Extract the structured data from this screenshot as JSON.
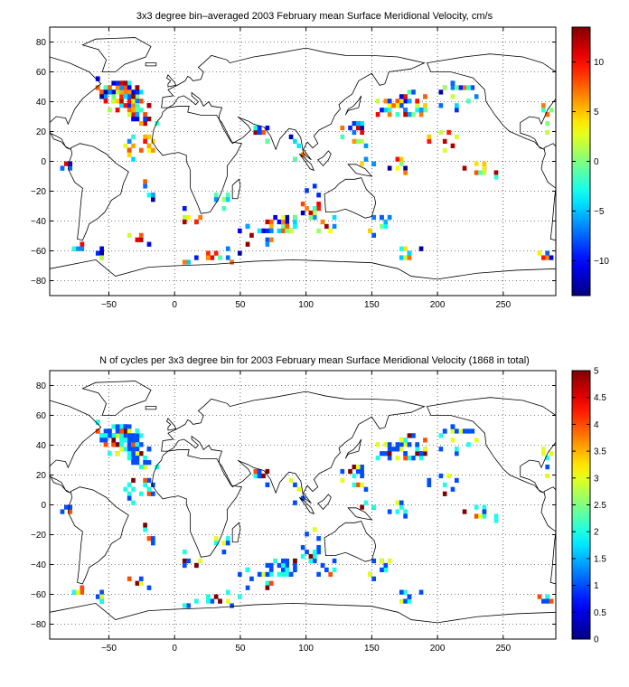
{
  "panels": [
    {
      "title": "3x3 degree bin–averaged 2003 February mean Surface Meridional Velocity, cm/s",
      "colorbar_ticks": [
        "10",
        "5",
        "0",
        "−5",
        "−10"
      ],
      "colorbar_values": [
        10,
        5,
        0,
        -5,
        -10
      ],
      "colorbar_range": [
        -13.5,
        13.5
      ],
      "colormap": "jet"
    },
    {
      "title": "N of cycles per 3x3 degree bin for 2003 February mean Surface Meridional Velocity (1868 in total)",
      "colorbar_ticks": [
        "5",
        "4.5",
        "4",
        "3.5",
        "3",
        "2.5",
        "2",
        "1.5",
        "1",
        "0.5",
        "0"
      ],
      "colorbar_values": [
        5,
        4.5,
        4,
        3.5,
        3,
        2.5,
        2,
        1.5,
        1,
        0.5,
        0
      ],
      "colorbar_range": [
        0,
        5
      ],
      "colormap": "jet"
    }
  ],
  "axes": {
    "x_ticks": [
      "−50",
      "0",
      "50",
      "100",
      "150",
      "200",
      "250"
    ],
    "x_values": [
      -50,
      0,
      50,
      100,
      150,
      200,
      250
    ],
    "y_ticks": [
      "80",
      "60",
      "40",
      "20",
      "0",
      "−20",
      "−40",
      "−60",
      "−80"
    ],
    "y_values": [
      80,
      60,
      40,
      20,
      0,
      -20,
      -40,
      -60,
      -80
    ],
    "xlim": [
      -95,
      290
    ],
    "ylim": [
      -90,
      90
    ],
    "grid": "dotted"
  },
  "colors": {
    "coastline": "#000000",
    "grid": "#000000"
  }
}
